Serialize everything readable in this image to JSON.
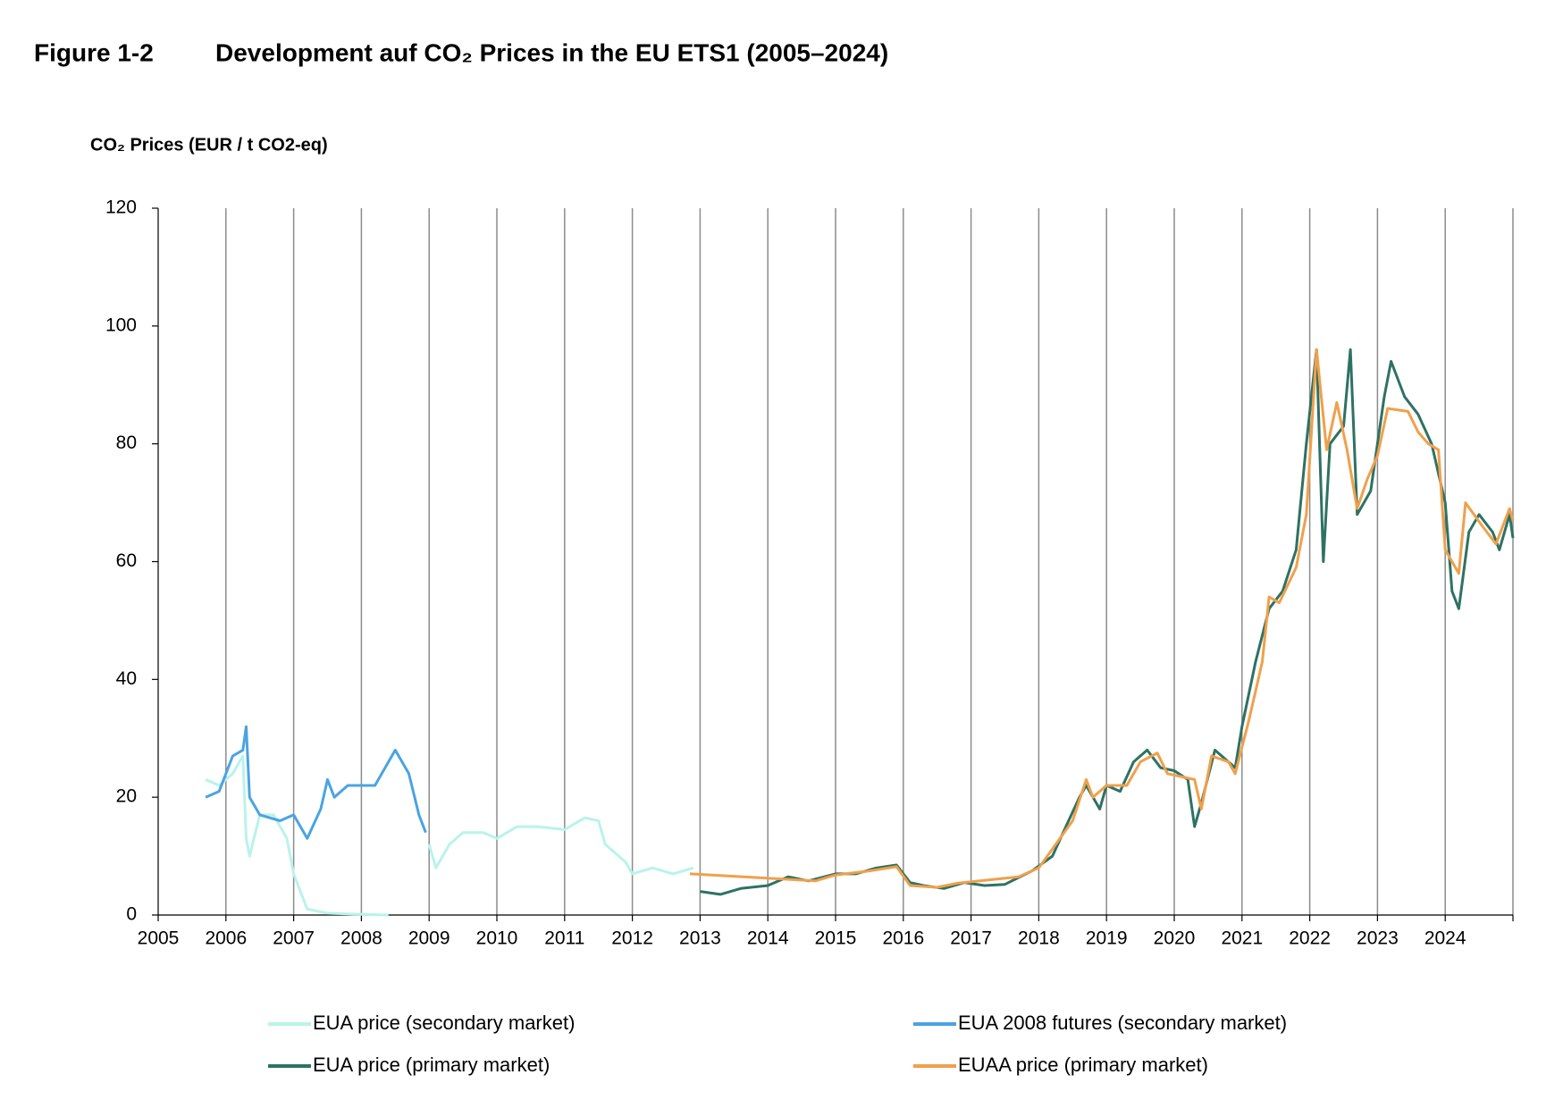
{
  "chart_data": {
    "type": "line",
    "figure_label": "Figure 1-2",
    "title": "Development auf CO₂ Prices in the EU ETS1 (2005–2024)",
    "y_label": "CO₂ Prices (EUR / t CO2-eq)",
    "xlim": [
      2005,
      2025
    ],
    "xticks": [
      2005,
      2006,
      2007,
      2008,
      2009,
      2010,
      2011,
      2012,
      2013,
      2014,
      2015,
      2016,
      2017,
      2018,
      2019,
      2020,
      2021,
      2022,
      2023,
      2024
    ],
    "ylim": [
      0,
      120
    ],
    "yticks": [
      0,
      20,
      40,
      60,
      80,
      100,
      120
    ],
    "xgrid": true,
    "legend": "bottom",
    "series": [
      {
        "name": "EUA price (secondary market)",
        "color": "#b9f3ea",
        "x": [
          2005.7,
          2005.9,
          2006.1,
          2006.25,
          2006.3,
          2006.35,
          2006.5,
          2006.7,
          2006.9,
          2007.0,
          2007.2,
          2007.5,
          2008.0,
          2008.4,
          2008.7,
          2009.0,
          2009.1,
          2009.3,
          2009.5,
          2009.8,
          2010.0,
          2010.3,
          2010.6,
          2011.0,
          2011.3,
          2011.5,
          2011.6,
          2011.9,
          2012.0,
          2012.3,
          2012.6,
          2012.9
        ],
        "y": [
          23,
          22,
          24,
          27,
          13,
          10,
          17,
          17,
          13,
          7,
          1,
          0.3,
          0.1,
          0,
          null,
          12,
          8,
          12,
          14,
          14,
          13,
          15,
          15,
          14.5,
          16.5,
          16,
          12,
          9,
          7,
          8,
          7,
          8
        ]
      },
      {
        "name": "EUA 2008 futures (secondary market)",
        "color": "#4ba3e3",
        "x": [
          2005.7,
          2005.9,
          2006.1,
          2006.25,
          2006.3,
          2006.35,
          2006.5,
          2006.8,
          2007.0,
          2007.2,
          2007.4,
          2007.5,
          2007.6,
          2007.8,
          2008.0,
          2008.2,
          2008.4,
          2008.5,
          2008.7,
          2008.85,
          2008.95
        ],
        "y": [
          20,
          21,
          27,
          28,
          32,
          20,
          17,
          16,
          17,
          13,
          18,
          23,
          20,
          22,
          22,
          22,
          26,
          28,
          24,
          17,
          14
        ]
      },
      {
        "name": "EUA price (primary market)",
        "color": "#2e7263",
        "x": [
          2013.0,
          2013.3,
          2013.6,
          2014.0,
          2014.3,
          2014.6,
          2015.0,
          2015.3,
          2015.6,
          2015.9,
          2016.1,
          2016.3,
          2016.6,
          2016.9,
          2017.2,
          2017.5,
          2017.9,
          2018.2,
          2018.4,
          2018.6,
          2018.7,
          2018.9,
          2019.0,
          2019.2,
          2019.4,
          2019.6,
          2019.8,
          2020.0,
          2020.2,
          2020.3,
          2020.4,
          2020.6,
          2020.9,
          2021.0,
          2021.2,
          2021.4,
          2021.6,
          2021.8,
          2021.95,
          2022.1,
          2022.2,
          2022.3,
          2022.5,
          2022.6,
          2022.7,
          2022.9,
          2023.1,
          2023.2,
          2023.4,
          2023.6,
          2023.8,
          2024.0,
          2024.1,
          2024.2,
          2024.35,
          2024.5,
          2024.7,
          2024.8,
          2024.95,
          2025.0
        ],
        "y": [
          4,
          3.5,
          4.5,
          5,
          6.5,
          5.8,
          7,
          7,
          8,
          8.5,
          5.5,
          5,
          4.5,
          5.5,
          5,
          5.2,
          7.5,
          10,
          15,
          20,
          22,
          18,
          22,
          21,
          26,
          28,
          25,
          24.5,
          23,
          15,
          19,
          28,
          25,
          32,
          43,
          52,
          55,
          62,
          80,
          96,
          60,
          80,
          83,
          96,
          68,
          72,
          88,
          94,
          88,
          85,
          80,
          70,
          55,
          52,
          65,
          68,
          65,
          62,
          68,
          64
        ]
      },
      {
        "name": "EUAA price (primary market)",
        "color": "#f0a04b",
        "x": [
          2012.85,
          2014.7,
          2015.0,
          2015.5,
          2015.9,
          2016.1,
          2016.5,
          2016.8,
          2017.7,
          2018.0,
          2018.5,
          2018.7,
          2018.8,
          2019.0,
          2019.3,
          2019.5,
          2019.75,
          2019.9,
          2020.3,
          2020.4,
          2020.55,
          2020.8,
          2020.9,
          2021.1,
          2021.3,
          2021.4,
          2021.55,
          2021.8,
          2021.95,
          2022.1,
          2022.25,
          2022.4,
          2022.55,
          2022.7,
          2022.85,
          2023.0,
          2023.15,
          2023.45,
          2023.6,
          2023.75,
          2023.9,
          2024.0,
          2024.2,
          2024.3,
          2024.55,
          2024.75,
          2024.95,
          2025.0
        ],
        "y": [
          7,
          5.8,
          6.8,
          7.5,
          8.2,
          5,
          4.7,
          5.4,
          6.5,
          8,
          16,
          23,
          20,
          22,
          22,
          26,
          27.5,
          24,
          23,
          18,
          27,
          26,
          24,
          33,
          43,
          54,
          53,
          59,
          68,
          96,
          79,
          87,
          79,
          69,
          74,
          78,
          86,
          85.5,
          82,
          80,
          79,
          62,
          58,
          70,
          66,
          63,
          69,
          67
        ]
      }
    ]
  }
}
